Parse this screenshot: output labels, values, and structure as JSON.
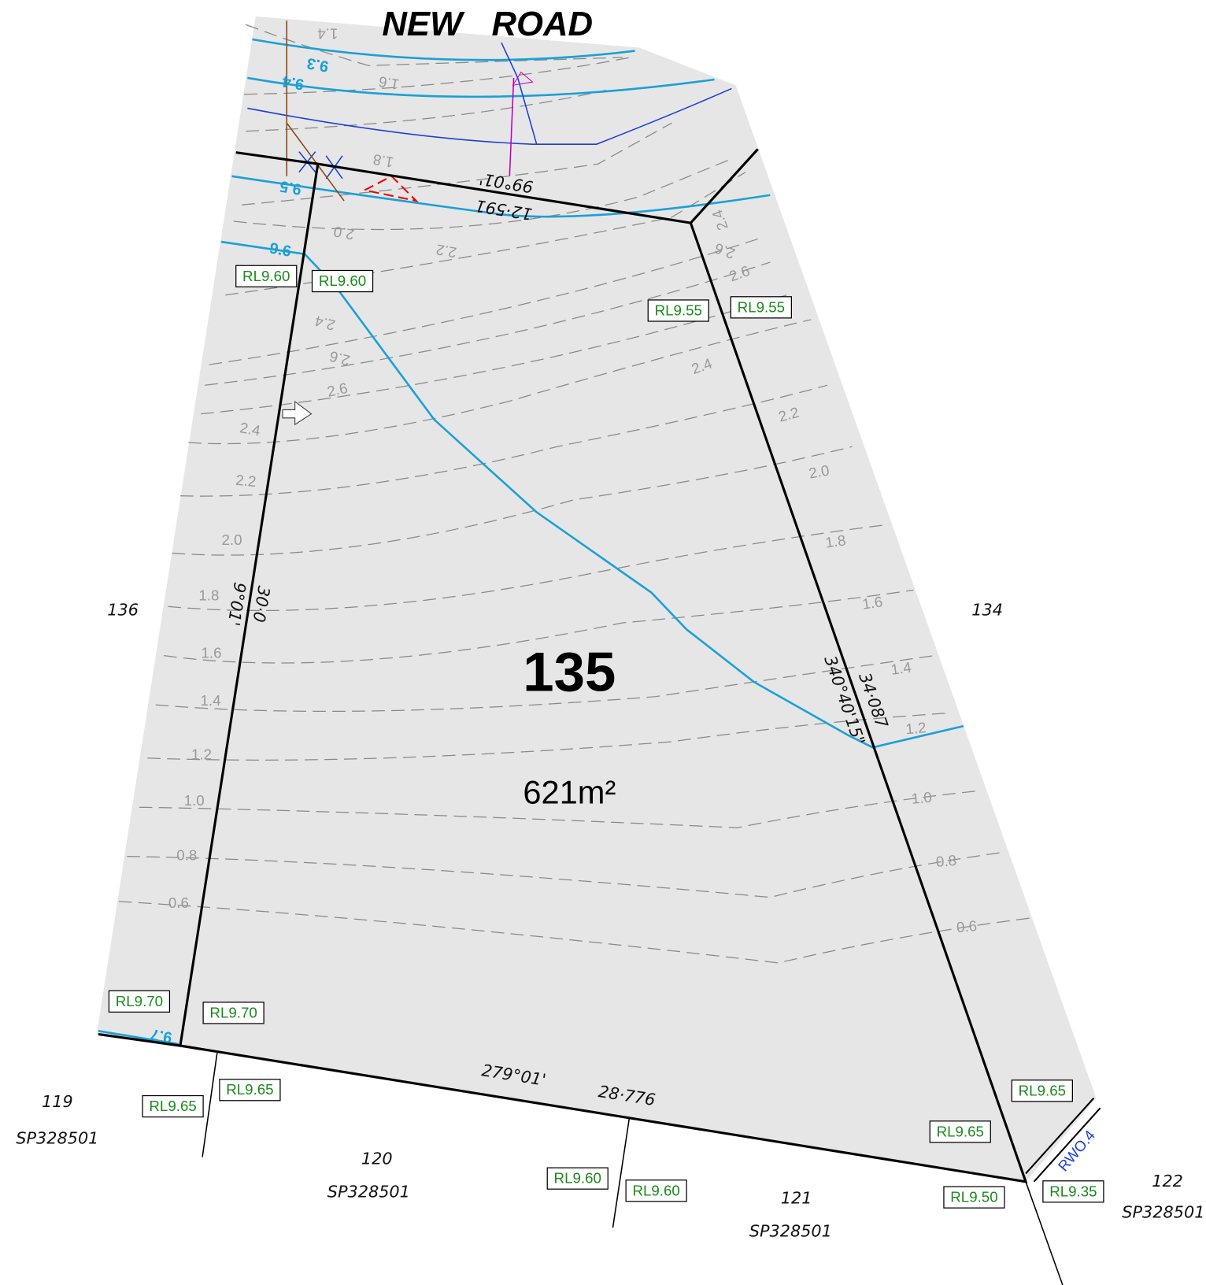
{
  "road": "NEW ROAD",
  "lot": {
    "number": "135",
    "area": "621m²"
  },
  "boundaries": {
    "top_bearing": "99°01'",
    "top_distance": "12·591",
    "right_bearing": "340°40'15\"",
    "right_distance": "34·087",
    "bottom_bearing": "279°01'",
    "bottom_distance": "28·776",
    "left_bearing": "9°01'",
    "left_distance": "30·0"
  },
  "neighbours": [
    {
      "number": "136"
    },
    {
      "number": "134"
    },
    {
      "number": "119",
      "plan": "SP328501"
    },
    {
      "number": "120",
      "plan": "SP328501"
    },
    {
      "number": "121",
      "plan": "SP328501"
    },
    {
      "number": "122",
      "plan": "SP328501"
    }
  ],
  "levels": [
    "RL9.60",
    "RL9.60",
    "RL9.55",
    "RL9.55",
    "RL9.70",
    "RL9.70",
    "RL9.65",
    "RL9.65",
    "RL9.65",
    "RL9.65",
    "RL9.60",
    "RL9.60",
    "RL9.50",
    "RL9.35"
  ],
  "water_contours": [
    "9.3",
    "9.4",
    "9.5",
    "9.6",
    "9.7"
  ],
  "contours": [
    "1.4",
    "1.6",
    "1.8",
    "2.0",
    "2.2",
    "2.4",
    "2.6",
    "2.4",
    "2.6",
    "2.6",
    "2.6",
    "2.4",
    "2.2",
    "2.0",
    "1.8",
    "1.6",
    "1.4",
    "1.2",
    "1.0",
    "0.8",
    "0.6",
    "2.4",
    "2.2",
    "2.0",
    "1.8",
    "1.6",
    "1.4",
    "1.2",
    "1.0",
    "0.8",
    "0.6"
  ],
  "outlet": "RWO.4"
}
